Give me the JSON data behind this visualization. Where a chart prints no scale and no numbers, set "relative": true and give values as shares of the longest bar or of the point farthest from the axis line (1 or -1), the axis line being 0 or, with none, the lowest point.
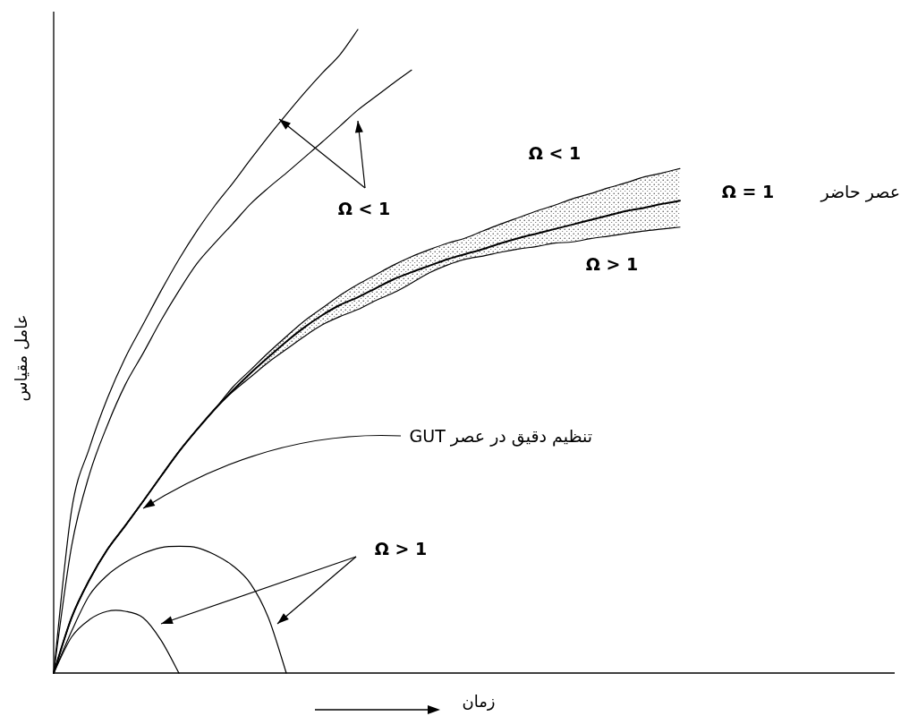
{
  "chart_data": {
    "type": "line",
    "relative": true,
    "xlabel": "زمان",
    "ylabel": "عامل مقیاس",
    "categories": [
      null,
      null,
      null,
      null,
      null,
      null,
      null,
      null,
      null,
      null,
      null,
      null,
      null,
      null,
      null,
      null,
      null,
      null,
      null,
      null,
      null,
      null,
      null,
      null,
      null,
      null,
      null,
      null,
      null,
      null,
      null,
      null,
      null,
      null,
      null,
      null,
      null,
      null,
      null,
      null,
      null,
      null,
      null,
      null,
      null,
      null,
      null,
      null
    ],
    "series": [
      {
        "color": "#000000",
        "values": [
          0,
          0.253,
          0.35,
          0.427,
          0.49,
          0.542,
          0.594,
          0.643,
          0.687,
          0.726,
          0.761,
          0.798,
          0.834,
          0.868,
          0.901,
          0.932,
          0.961,
          1,
          null,
          null,
          null,
          null,
          null,
          null,
          null,
          null,
          null,
          null,
          null,
          null,
          null,
          null,
          null,
          null,
          null,
          null,
          null,
          null,
          null,
          null,
          null,
          null,
          null,
          null,
          null,
          null,
          null,
          null
        ]
      },
      {
        "color": "#000000",
        "values": [
          0,
          0.197,
          0.309,
          0.385,
          0.448,
          0.497,
          0.548,
          0.594,
          0.636,
          0.668,
          0.698,
          0.729,
          0.754,
          0.777,
          0.801,
          0.825,
          0.85,
          0.875,
          0.896,
          0.917,
          0.937,
          null,
          null,
          null,
          null,
          null,
          null,
          null,
          null,
          null,
          null,
          null,
          null,
          null,
          null,
          null,
          null,
          null,
          null,
          null,
          null,
          null,
          null,
          null,
          null,
          null,
          null,
          null
        ]
      },
      {
        "color": "#000000",
        "values": [
          0,
          0.086,
          0.145,
          0.192,
          0.229,
          0.267,
          0.306,
          0.344,
          0.378,
          0.41,
          0.444,
          0.471,
          0.498,
          0.523,
          0.547,
          0.567,
          0.587,
          0.604,
          0.619,
          0.634,
          0.647,
          0.658,
          0.668,
          0.676,
          0.687,
          0.698,
          0.708,
          0.718,
          0.727,
          0.737,
          0.745,
          0.754,
          0.762,
          0.771,
          0.777,
          0.784,
          null,
          null,
          null,
          null,
          null,
          null,
          null,
          null,
          null,
          null,
          null,
          null
        ]
      },
      {
        "color": "#000000",
        "values": [
          0,
          0.086,
          0.145,
          0.192,
          0.229,
          0.267,
          0.306,
          0.344,
          0.378,
          0.41,
          0.437,
          0.46,
          0.483,
          0.503,
          0.523,
          0.541,
          0.554,
          0.565,
          0.579,
          0.591,
          0.606,
          0.622,
          0.634,
          0.643,
          0.648,
          0.654,
          0.659,
          0.663,
          0.668,
          0.67,
          0.675,
          0.679,
          0.683,
          0.687,
          0.69,
          0.693,
          null,
          null,
          null,
          null,
          null,
          null,
          null,
          null,
          null,
          null,
          null,
          null
        ]
      },
      {
        "color": "#000000",
        "values": [
          0,
          0.086,
          0.145,
          0.192,
          0.229,
          0.267,
          0.306,
          0.344,
          0.378,
          0.41,
          0.439,
          0.466,
          0.491,
          0.515,
          0.537,
          0.556,
          0.572,
          0.584,
          0.598,
          0.612,
          0.623,
          0.633,
          0.643,
          0.651,
          0.659,
          0.668,
          0.676,
          0.683,
          0.69,
          0.697,
          0.704,
          0.711,
          0.718,
          0.723,
          0.729,
          0.734,
          null,
          null,
          null,
          null,
          null,
          null,
          null,
          null,
          null,
          null,
          null,
          null
        ],
        "upper": [
          0,
          0.086,
          0.145,
          0.192,
          0.229,
          0.267,
          0.306,
          0.344,
          0.378,
          0.41,
          0.444,
          0.471,
          0.498,
          0.523,
          0.547,
          0.567,
          0.587,
          0.604,
          0.619,
          0.634,
          0.647,
          0.658,
          0.668,
          0.676,
          0.687,
          0.698,
          0.708,
          0.718,
          0.727,
          0.737,
          0.745,
          0.754,
          0.762,
          0.771,
          0.777,
          0.784,
          null,
          null,
          null,
          null,
          null,
          null,
          null,
          null,
          null,
          null,
          null,
          null
        ],
        "lower": [
          0,
          0.086,
          0.145,
          0.192,
          0.229,
          0.267,
          0.306,
          0.344,
          0.378,
          0.41,
          0.437,
          0.46,
          0.483,
          0.503,
          0.523,
          0.541,
          0.554,
          0.565,
          0.579,
          0.591,
          0.606,
          0.622,
          0.634,
          0.643,
          0.648,
          0.654,
          0.659,
          0.663,
          0.668,
          0.67,
          0.675,
          0.679,
          0.683,
          0.687,
          0.69,
          0.693,
          null,
          null,
          null,
          null,
          null,
          null,
          null,
          null,
          null,
          null,
          null,
          null
        ]
      },
      {
        "color": "#000000",
        "values": [
          0,
          0.065,
          0.121,
          0.152,
          0.172,
          0.186,
          0.195,
          0.197,
          0.195,
          0.184,
          0.167,
          0.139,
          0.086,
          0,
          null,
          null,
          null,
          null,
          null,
          null,
          null,
          null,
          null,
          null,
          null,
          null,
          null,
          null,
          null,
          null,
          null,
          null,
          null,
          null,
          null,
          null,
          null,
          null,
          null,
          null,
          null,
          null,
          null,
          null,
          null,
          null,
          null,
          null
        ]
      },
      {
        "color": "#000000",
        "values": [
          0,
          0.056,
          0.083,
          0.096,
          0.096,
          0.086,
          0.051,
          0,
          null,
          null,
          null,
          null,
          null,
          null,
          null,
          null,
          null,
          null,
          null,
          null,
          null,
          null,
          null,
          null,
          null,
          null,
          null,
          null,
          null,
          null,
          null,
          null,
          null,
          null,
          null,
          null,
          null,
          null,
          null,
          null,
          null,
          null,
          null,
          null,
          null,
          null,
          null,
          null
        ]
      }
    ],
    "annotations": [
      "Ω < 1",
      "Ω < 1",
      "Ω = 1",
      "عصر حاضر",
      "Ω > 1",
      "تنظیم دقیق در عصر GUT",
      "Ω > 1"
    ]
  }
}
